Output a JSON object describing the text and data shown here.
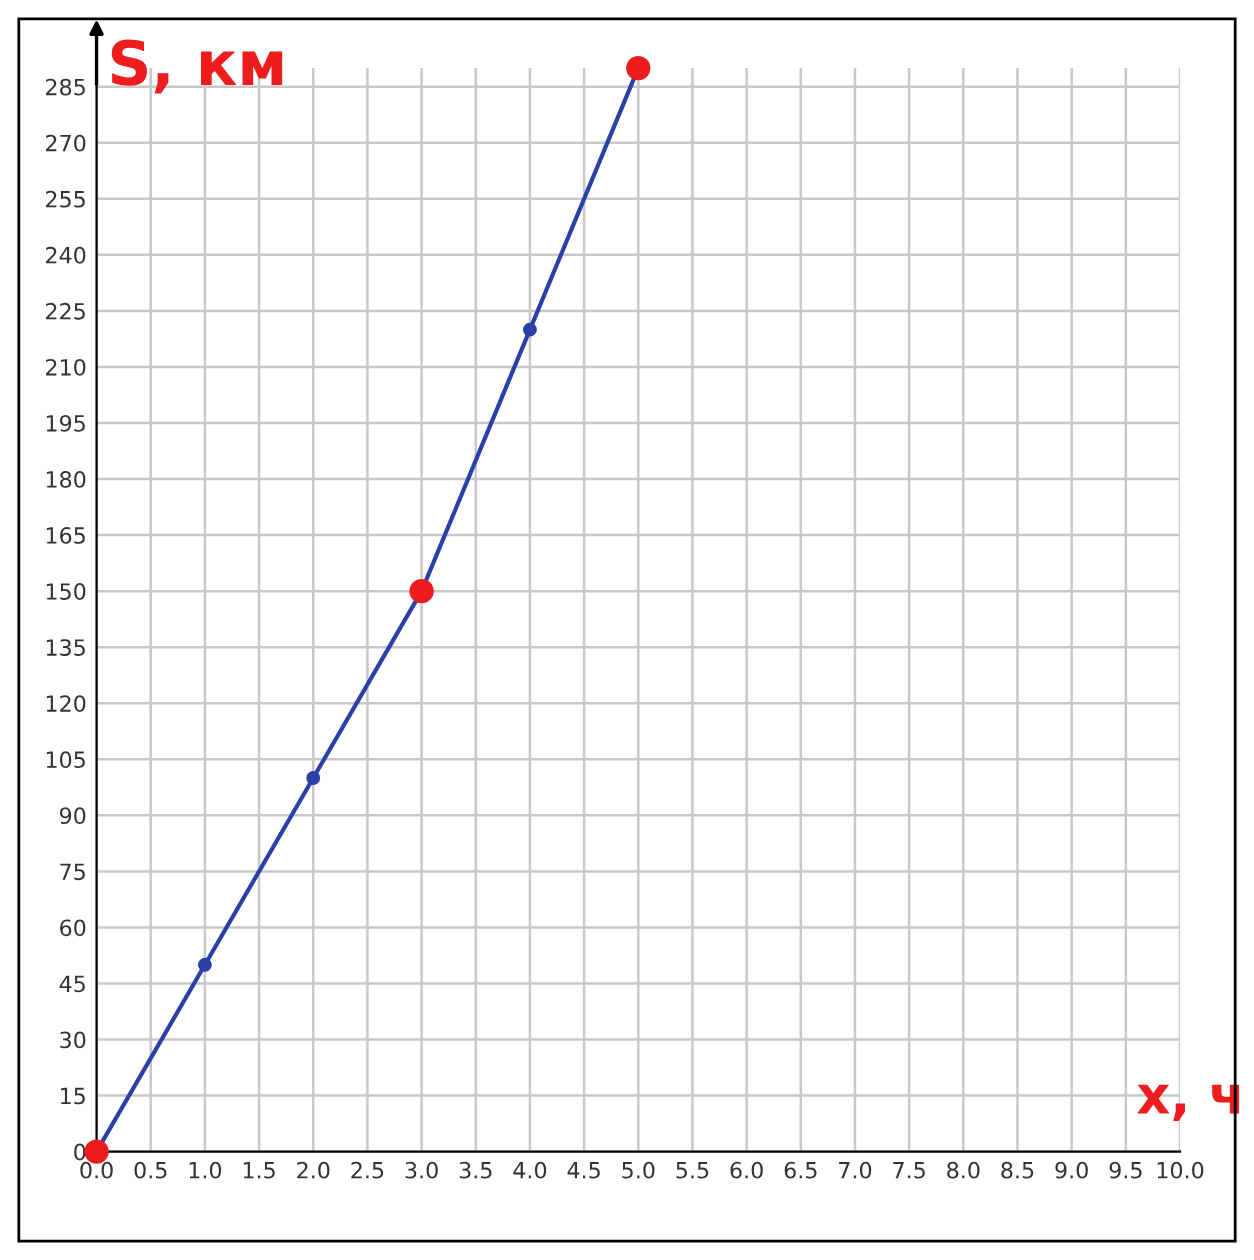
{
  "chart_data": {
    "type": "line",
    "xlabel": "x, ч",
    "ylabel": "S, км",
    "x": [
      0,
      1,
      2,
      3,
      4,
      5
    ],
    "series": [
      {
        "color": "#2a3fa8",
        "marker": "circle",
        "values": [
          0,
          50,
          100,
          150,
          220,
          290
        ]
      },
      {
        "type": "scatter",
        "color": "#ee1c1c",
        "marker": "circle",
        "x": [
          0,
          3,
          5
        ],
        "values": [
          0,
          150,
          290
        ]
      }
    ],
    "xlim": [
      0,
      10
    ],
    "xticks": [
      {
        "value": 0,
        "label": "0.0"
      },
      {
        "value": 0.5,
        "label": "0.5"
      },
      {
        "value": 1,
        "label": "1.0"
      },
      {
        "value": 1.5,
        "label": "1.5"
      },
      {
        "value": 2,
        "label": "2.0"
      },
      {
        "value": 2.5,
        "label": "2.5"
      },
      {
        "value": 3,
        "label": "3.0"
      },
      {
        "value": 3.5,
        "label": "3.5"
      },
      {
        "value": 4,
        "label": "4.0"
      },
      {
        "value": 4.5,
        "label": "4.5"
      },
      {
        "value": 5,
        "label": "5.0"
      },
      {
        "value": 5.5,
        "label": "5.5"
      },
      {
        "value": 6,
        "label": "6.0"
      },
      {
        "value": 6.5,
        "label": "6.5"
      },
      {
        "value": 7,
        "label": "7.0"
      },
      {
        "value": 7.5,
        "label": "7.5"
      },
      {
        "value": 8,
        "label": "8.0"
      },
      {
        "value": 8.5,
        "label": "8.5"
      },
      {
        "value": 9,
        "label": "9.0"
      },
      {
        "value": 9.5,
        "label": "9.5"
      },
      {
        "value": 10,
        "label": "10.0"
      }
    ],
    "ylim": [
      0,
      290
    ],
    "yticks": [
      0,
      15,
      30,
      45,
      60,
      75,
      90,
      105,
      120,
      135,
      150,
      165,
      180,
      195,
      210,
      225,
      240,
      255,
      270,
      285
    ],
    "grid": true
  }
}
